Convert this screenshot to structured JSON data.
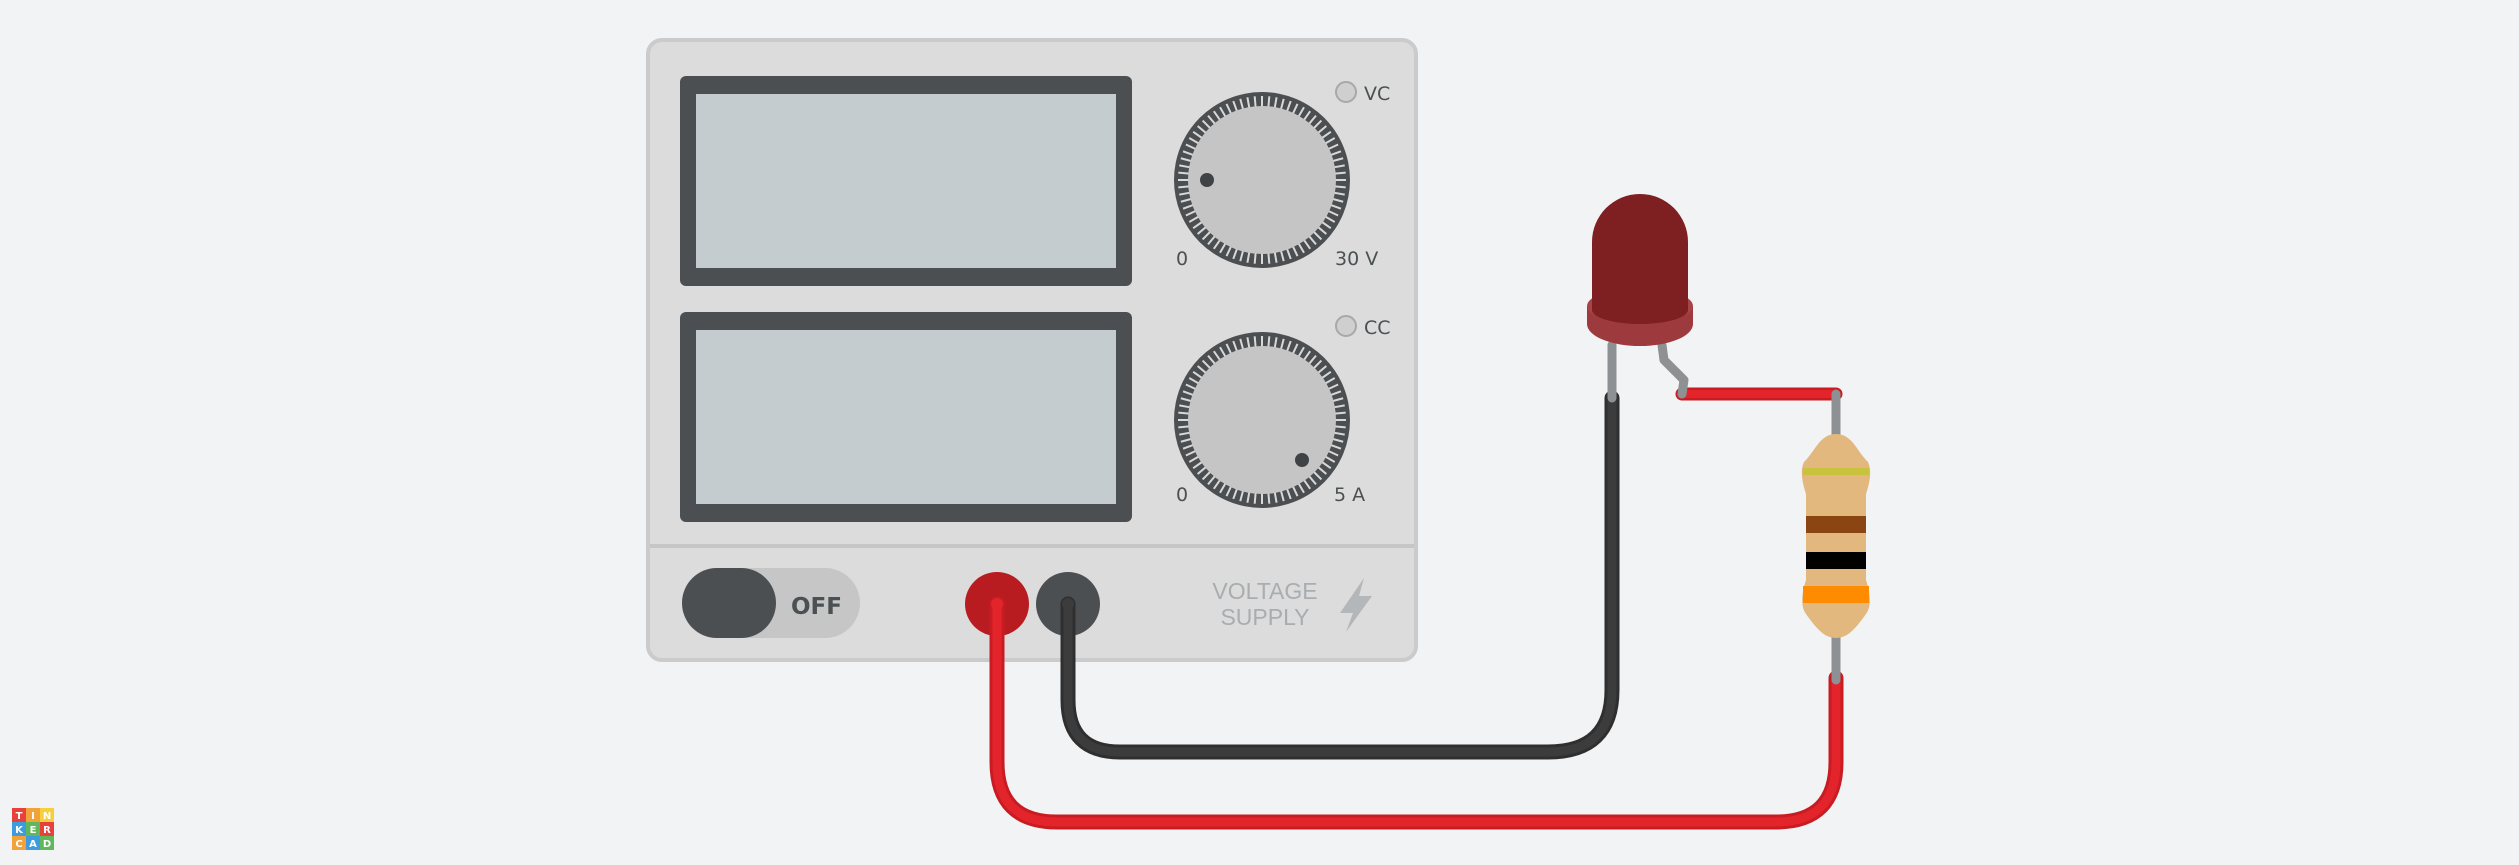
{
  "power_supply": {
    "voltage_indicator": "VC",
    "current_indicator": "CC",
    "voltage_min": "0",
    "voltage_max": "30 V",
    "current_min": "0",
    "current_max": "5 A",
    "voltage_knob_level": 0.0,
    "current_knob_level": 1.0,
    "power_switch": "OFF",
    "brand_line1": "VOLTAGE",
    "brand_line2": "SUPPLY"
  },
  "logo": {
    "letters": [
      "T",
      "I",
      "N",
      "K",
      "E",
      "R",
      "C",
      "A",
      "D"
    ]
  },
  "colors": {
    "wire_red": "#e3242b",
    "wire_black": "#3a3a3a",
    "led_body": "#7e1f22",
    "resistor_body": "#e2b87e",
    "terminal_positive": "#b81c21",
    "terminal_negative": "#4b4f51",
    "display": "#c4cccf"
  },
  "resistor": {
    "bands": [
      "#c9c23d",
      "#8b4513",
      "#000000",
      "#ff8c00"
    ]
  }
}
